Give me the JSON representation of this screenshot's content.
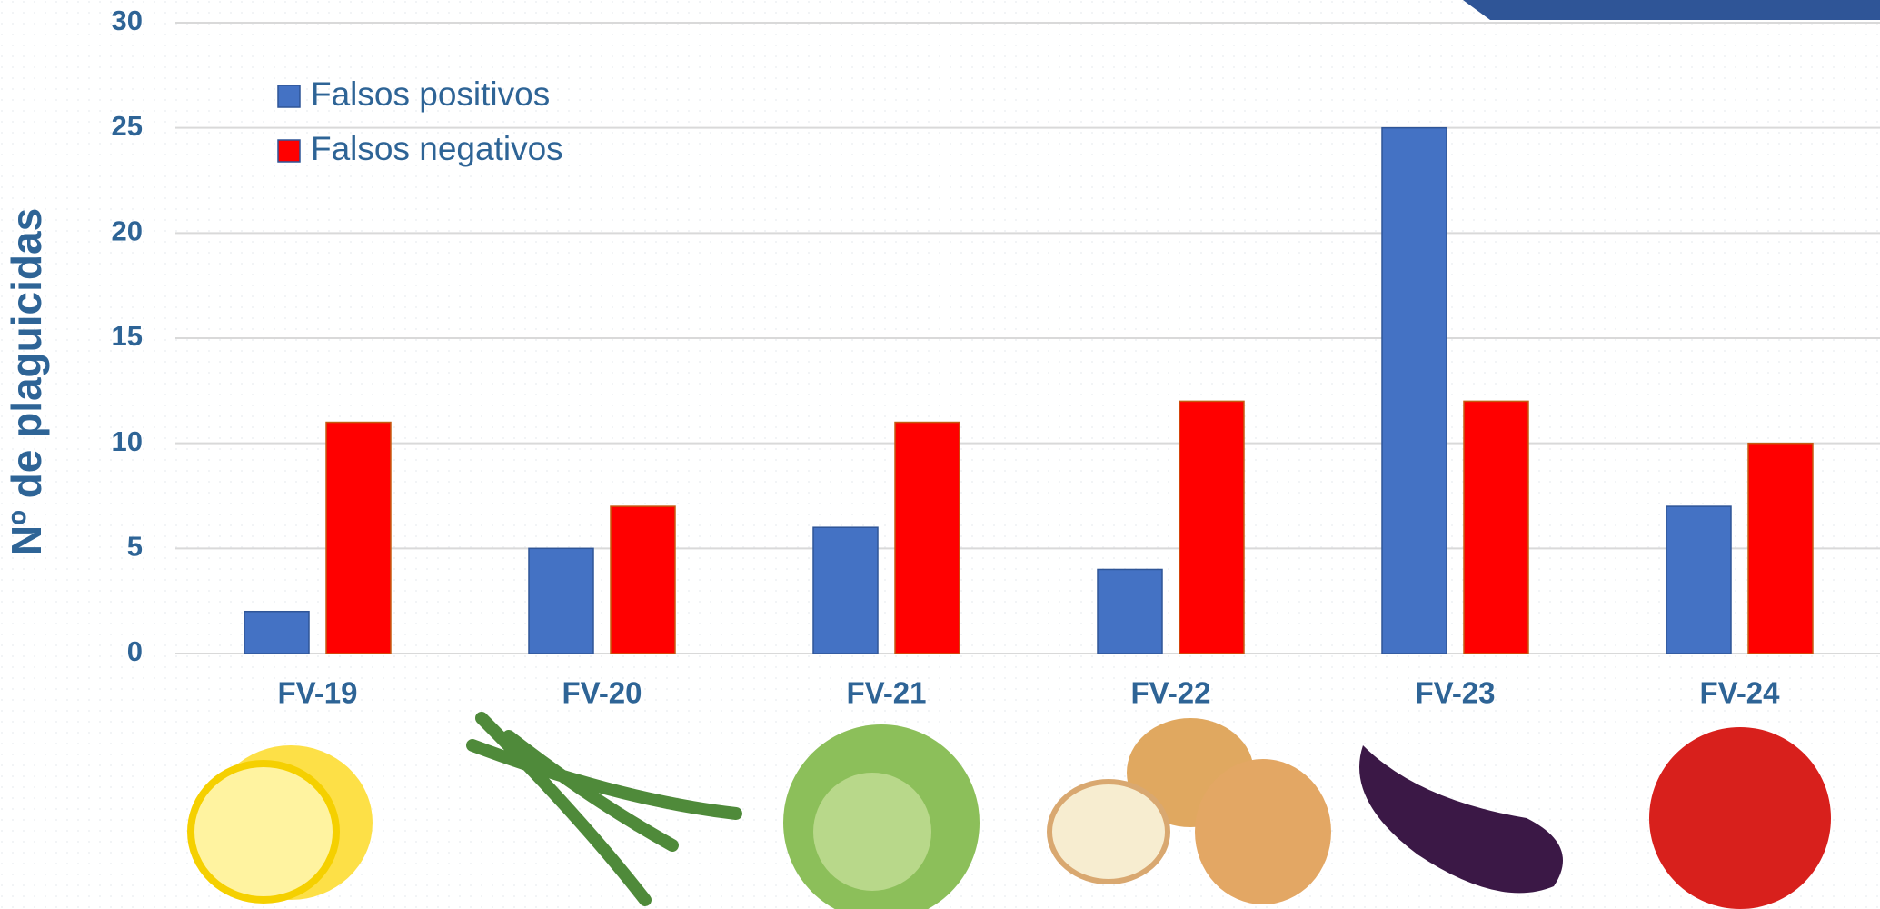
{
  "chart_data": {
    "type": "bar",
    "y_label": "Nº de plaguicidas",
    "categories": [
      "FV-19",
      "FV-20",
      "FV-21",
      "FV-22",
      "FV-23",
      "FV-24"
    ],
    "series": [
      {
        "name": "Falsos positivos",
        "color": "#4472c4",
        "values": [
          2,
          5,
          6,
          4,
          25,
          7
        ]
      },
      {
        "name": "Falsos negativos",
        "color": "#ff0000",
        "values": [
          11,
          7,
          11,
          12,
          12,
          10
        ]
      }
    ],
    "ylim": [
      0,
      30
    ],
    "yticks": [
      0,
      5,
      10,
      15,
      20,
      25,
      30
    ],
    "grid": true,
    "legend": "upper left"
  }
}
